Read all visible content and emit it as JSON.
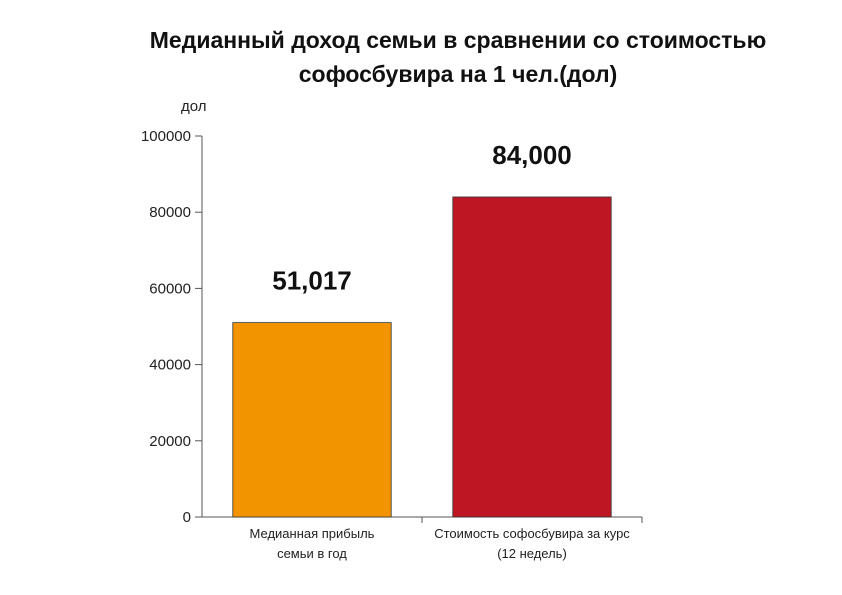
{
  "chart_data": {
    "type": "bar",
    "title_lines": [
      "Медианный доход семьи в сравнении со стоимостью",
      "софосбувира на 1 чел.(дол)"
    ],
    "ylabel": "дол",
    "xlabel": "",
    "ylim": [
      0,
      100000
    ],
    "yticks": [
      "0",
      "20000",
      "40000",
      "60000",
      "80000",
      "100000"
    ],
    "categories": [
      [
        "Медианная прибыль",
        "семьи в год"
      ],
      [
        "Стоимость софосбувира за курс",
        "(12 недель)"
      ]
    ],
    "values": [
      51017,
      84000
    ],
    "value_labels": [
      "51,017",
      "84,000"
    ],
    "colors": [
      "#F29400",
      "#BE1622"
    ],
    "grid": false,
    "legend": "none"
  }
}
